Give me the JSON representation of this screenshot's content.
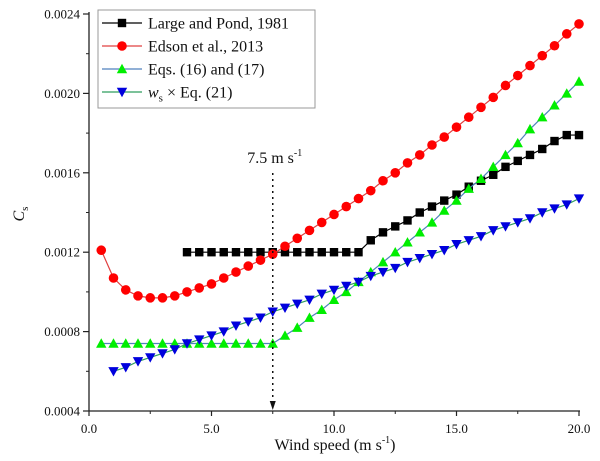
{
  "chart_data": {
    "type": "line",
    "title": "",
    "xlabel": "Wind speed (m s",
    "xlabel_sup": "-1",
    "xlabel_close": ")",
    "ylabel": "C",
    "ylabel_sub": "s",
    "xlim": [
      0,
      20
    ],
    "ylim": [
      0.0004,
      0.0024
    ],
    "xticks": [
      0,
      5,
      10,
      15,
      20
    ],
    "xtick_labels": [
      "0.0",
      "5.0",
      "10.0",
      "15.0",
      "20.0"
    ],
    "xminor": [
      2.5,
      7.5,
      12.5,
      17.5
    ],
    "yticks": [
      0.0004,
      0.0008,
      0.0012,
      0.0016,
      0.002,
      0.0024
    ],
    "ytick_labels": [
      "0.0004",
      "0.0008",
      "0.0012",
      "0.0016",
      "0.0020",
      "0.0024"
    ],
    "yminor": [
      0.0006,
      0.001,
      0.0014,
      0.0018,
      0.0022
    ],
    "grid": false,
    "legend_position": "top-left",
    "annotation": {
      "text": "7.5 m s",
      "sup": "-1",
      "x": 7.5,
      "style": "dotted vertical line with downward arrow"
    },
    "series": [
      {
        "name": "Large and Pond, 1981",
        "marker": "square",
        "marker_color": "#000000",
        "line_color": "#000000",
        "x": [
          4.0,
          4.5,
          5.0,
          5.5,
          6.0,
          6.5,
          7.0,
          7.5,
          8.0,
          8.5,
          9.0,
          9.5,
          10.0,
          10.5,
          11.0,
          11.5,
          12.0,
          12.5,
          13.0,
          13.5,
          14.0,
          14.5,
          15.0,
          15.5,
          16.0,
          16.5,
          17.0,
          17.5,
          18.0,
          18.5,
          19.0,
          19.5,
          20.0
        ],
        "values": [
          0.0012,
          0.0012,
          0.0012,
          0.0012,
          0.0012,
          0.0012,
          0.0012,
          0.0012,
          0.0012,
          0.0012,
          0.0012,
          0.0012,
          0.0012,
          0.0012,
          0.0012,
          0.00126,
          0.0013,
          0.00133,
          0.00136,
          0.0014,
          0.00143,
          0.00146,
          0.00149,
          0.00153,
          0.00156,
          0.00159,
          0.00163,
          0.00166,
          0.00169,
          0.00172,
          0.00176,
          0.00179,
          0.00179
        ]
      },
      {
        "name": "Edson et al., 2013",
        "marker": "circle",
        "marker_color": "#ff0000",
        "line_color": "#e04040",
        "x": [
          0.5,
          1.0,
          1.5,
          2.0,
          2.5,
          3.0,
          3.5,
          4.0,
          4.5,
          5.0,
          5.5,
          6.0,
          6.5,
          7.0,
          7.5,
          8.0,
          8.5,
          9.0,
          9.5,
          10.0,
          10.5,
          11.0,
          11.5,
          12.0,
          12.5,
          13.0,
          13.5,
          14.0,
          14.5,
          15.0,
          15.5,
          16.0,
          16.5,
          17.0,
          17.5,
          18.0,
          18.5,
          19.0,
          19.5,
          20.0
        ],
        "values": [
          0.00121,
          0.00107,
          0.00101,
          0.00098,
          0.00097,
          0.00097,
          0.00098,
          0.001,
          0.00102,
          0.00104,
          0.00107,
          0.0011,
          0.00113,
          0.00116,
          0.00119,
          0.00123,
          0.00127,
          0.00131,
          0.00135,
          0.00139,
          0.00143,
          0.00147,
          0.00151,
          0.00156,
          0.0016,
          0.00165,
          0.00169,
          0.00174,
          0.00178,
          0.00183,
          0.00188,
          0.00193,
          0.00198,
          0.00204,
          0.00209,
          0.00214,
          0.00219,
          0.00224,
          0.0023,
          0.00235
        ]
      },
      {
        "name": "Eqs. (16) and (17)",
        "marker": "triangle-up",
        "marker_color": "#00ee00",
        "line_color": "#4f81bd",
        "x": [
          0.5,
          1.0,
          1.5,
          2.0,
          2.5,
          3.0,
          3.5,
          4.0,
          4.5,
          5.0,
          5.5,
          6.0,
          6.5,
          7.0,
          7.5,
          8.0,
          8.5,
          9.0,
          9.5,
          10.0,
          10.5,
          11.0,
          11.5,
          12.0,
          12.5,
          13.0,
          13.5,
          14.0,
          14.5,
          15.0,
          15.5,
          16.0,
          16.5,
          17.0,
          17.5,
          18.0,
          18.5,
          19.0,
          19.5,
          20.0
        ],
        "values": [
          0.00074,
          0.00074,
          0.00074,
          0.00074,
          0.00074,
          0.00074,
          0.00074,
          0.00074,
          0.00074,
          0.00074,
          0.00074,
          0.00074,
          0.00074,
          0.00074,
          0.00074,
          0.00078,
          0.00082,
          0.00087,
          0.00091,
          0.00096,
          0.001,
          0.00105,
          0.0011,
          0.00115,
          0.0012,
          0.00125,
          0.0013,
          0.00135,
          0.00141,
          0.00146,
          0.00152,
          0.00157,
          0.00163,
          0.00169,
          0.00175,
          0.00182,
          0.00188,
          0.00194,
          0.002,
          0.00206
        ]
      },
      {
        "name": "w",
        "name_sub": "s",
        "name_rest": " × Eq. (21)",
        "marker": "triangle-down",
        "marker_color": "#0000dd",
        "line_color": "#2e9e5e",
        "x": [
          1.0,
          1.5,
          2.0,
          2.5,
          3.0,
          3.5,
          4.0,
          4.5,
          5.0,
          5.5,
          6.0,
          6.5,
          7.0,
          7.5,
          8.0,
          8.5,
          9.0,
          9.5,
          10.0,
          10.5,
          11.0,
          11.5,
          12.0,
          12.5,
          13.0,
          13.5,
          14.0,
          14.5,
          15.0,
          15.5,
          16.0,
          16.5,
          17.0,
          17.5,
          18.0,
          18.5,
          19.0,
          19.5,
          20.0
        ],
        "values": [
          0.0006,
          0.00062,
          0.00065,
          0.00067,
          0.00069,
          0.00071,
          0.00074,
          0.00076,
          0.00078,
          0.0008,
          0.00083,
          0.00085,
          0.00087,
          0.0009,
          0.00092,
          0.00094,
          0.00096,
          0.00099,
          0.00101,
          0.00103,
          0.00105,
          0.00108,
          0.0011,
          0.00112,
          0.00115,
          0.00117,
          0.00119,
          0.00121,
          0.00124,
          0.00126,
          0.00128,
          0.00131,
          0.00133,
          0.00135,
          0.00137,
          0.0014,
          0.00142,
          0.00144,
          0.00147
        ]
      }
    ]
  }
}
